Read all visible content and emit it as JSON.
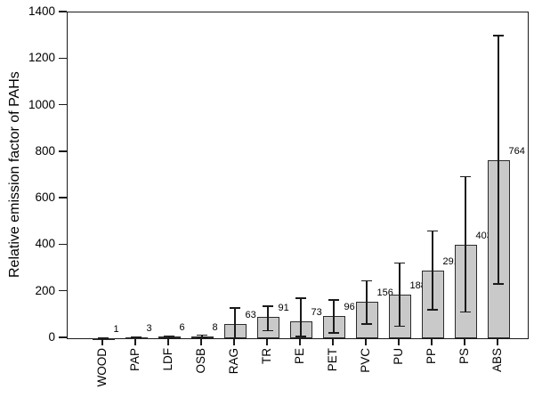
{
  "figure": {
    "background": "#ffffff",
    "text_color": "#000000",
    "axis_color": "#1a1a1a"
  },
  "chart_data": {
    "type": "bar",
    "title": "",
    "xlabel": "",
    "ylabel": "Relative emission factor of PAHs",
    "ylim": [
      0,
      1400
    ],
    "yticks": [
      "0",
      "200",
      "400",
      "600",
      "800",
      "1000",
      "1200",
      "1400"
    ],
    "grid": false,
    "legend": null,
    "frame": "full-box",
    "categories": [
      "WOOD",
      "PAP",
      "LDF",
      "OSB",
      "RAG",
      "TR",
      "PE",
      "PET",
      "PVC",
      "PU",
      "PP",
      "PS",
      "ABS"
    ],
    "values": [
      1,
      3,
      6,
      8,
      63,
      91,
      73,
      96,
      156,
      188,
      291,
      403,
      764
    ],
    "bar_labels": [
      "1",
      "3",
      "6",
      "8",
      "63",
      "91",
      "73",
      "96",
      "156",
      "188",
      "291",
      "403",
      "764"
    ],
    "error_low": [
      0,
      1,
      2,
      3,
      0,
      32,
      8,
      22,
      62,
      52,
      123,
      113,
      234
    ],
    "error_high": [
      2,
      6,
      10,
      14,
      130,
      137,
      173,
      165,
      246,
      323,
      460,
      695,
      1300
    ],
    "bar_fill": "#c9c9c9",
    "bar_border": "#2b2b2b",
    "error_color": "#1a1a1a"
  }
}
